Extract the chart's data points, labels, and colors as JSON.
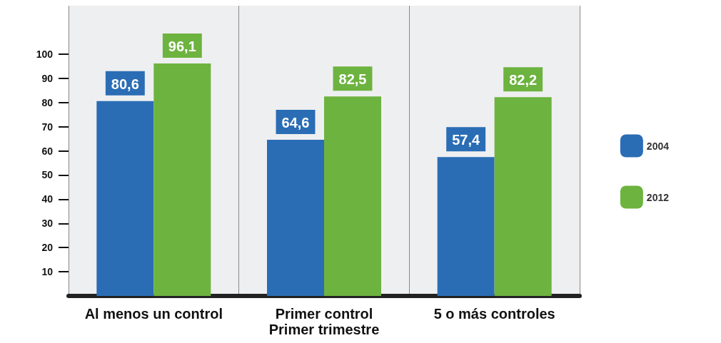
{
  "chart_data": {
    "type": "bar",
    "categories": [
      "Al menos un control",
      "Primer control\nPrimer trimestre",
      "5 o más controles"
    ],
    "series": [
      {
        "name": "2004",
        "color": "#2a6db5",
        "values": [
          80.6,
          64.6,
          57.4
        ],
        "value_labels": [
          "80,6",
          "64,6",
          "57,4"
        ]
      },
      {
        "name": "2012",
        "color": "#6db33f",
        "values": [
          96.1,
          82.5,
          82.2
        ],
        "value_labels": [
          "96,1",
          "82,5",
          "82,2"
        ]
      }
    ],
    "ylim": [
      0,
      120
    ],
    "yticks": [
      10,
      20,
      30,
      40,
      50,
      60,
      70,
      80,
      90,
      100
    ],
    "grid": "x",
    "legend": "right"
  }
}
